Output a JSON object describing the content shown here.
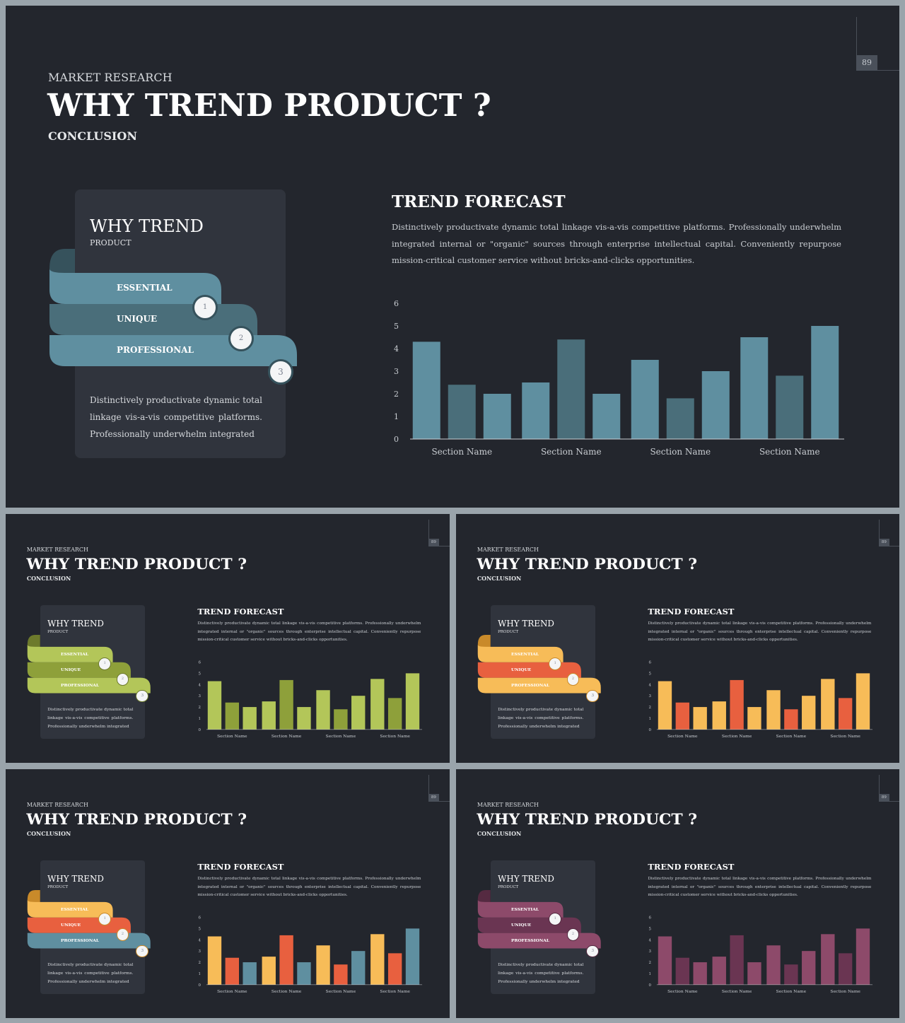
{
  "slides": [
    {
      "page_number": "89",
      "kicker": "MARKET RESEARCH",
      "title": "WHY TREND PRODUCT ?",
      "subtitle": "CONCLUSION",
      "card": {
        "title": "WHY TREND",
        "subtitle": "PRODUCT",
        "items": [
          {
            "label": "ESSENTIAL",
            "step": "1"
          },
          {
            "label": "UNIQUE",
            "step": "2"
          },
          {
            "label": "PROFESSIONAL",
            "step": "3"
          }
        ],
        "description": "Distinctively productivate dynamic total linkage vis-a-vis competitive platforms. Professionally underwhelm integrated"
      },
      "forecast": {
        "title": "TREND FORECAST",
        "text": "Distinctively productivate dynamic total linkage vis-a-vis competitive platforms. Professionally underwhelm integrated internal or \"organic\" sources through enterprise intellectual capital. Conveniently repurpose mission-critical customer service without bricks-and-clicks opportunities."
      },
      "colors": {
        "ribbons": [
          "#5f8fa0",
          "#4a6e7a",
          "#5f8fa0"
        ],
        "ribbon_shadow": "#36525c",
        "bars": [
          "#5f8fa0",
          "#4a6e7a",
          "#5f8fa0"
        ]
      }
    },
    {
      "page_number": "89",
      "kicker": "MARKET RESEARCH",
      "title": "WHY TREND PRODUCT ?",
      "subtitle": "CONCLUSION",
      "card": {
        "title": "WHY TREND",
        "subtitle": "PRODUCT",
        "items": [
          {
            "label": "ESSENTIAL",
            "step": "1"
          },
          {
            "label": "UNIQUE",
            "step": "2"
          },
          {
            "label": "PROFESSIONAL",
            "step": "3"
          }
        ],
        "description": "Distinctively productivate dynamic total linkage vis-a-vis competitive platforms. Professionally underwhelm integrated"
      },
      "forecast": {
        "title": "TREND FORECAST",
        "text": "Distinctively productivate dynamic total linkage vis-a-vis competitive platforms. Professionally underwhelm integrated internal or \"organic\" sources through enterprise intellectual capital. Conveniently repurpose mission-critical customer service without bricks-and-clicks opportunities."
      },
      "colors": {
        "ribbons": [
          "#b3c659",
          "#8ea03a",
          "#b3c659"
        ],
        "ribbon_shadow": "#6d7a2c",
        "bars": [
          "#b3c659",
          "#8ea03a",
          "#b3c659"
        ]
      }
    },
    {
      "page_number": "89",
      "kicker": "MARKET RESEARCH",
      "title": "WHY TREND PRODUCT ?",
      "subtitle": "CONCLUSION",
      "card": {
        "title": "WHY TREND",
        "subtitle": "PRODUCT",
        "items": [
          {
            "label": "ESSENTIAL",
            "step": "1"
          },
          {
            "label": "UNIQUE",
            "step": "2"
          },
          {
            "label": "PROFESSIONAL",
            "step": "3"
          }
        ],
        "description": "Distinctively productivate dynamic total linkage vis-a-vis competitive platforms. Professionally underwhelm integrated"
      },
      "forecast": {
        "title": "TREND FORECAST",
        "text": "Distinctively productivate dynamic total linkage vis-a-vis competitive platforms. Professionally underwhelm integrated internal or \"organic\" sources through enterprise intellectual capital. Conveniently repurpose mission-critical customer service without bricks-and-clicks opportunities."
      },
      "colors": {
        "ribbons": [
          "#f7bc58",
          "#e8603f",
          "#f7bc58"
        ],
        "ribbon_shadow": "#c98a2a",
        "bars": [
          "#f7bc58",
          "#e8603f",
          "#f7bc58"
        ]
      }
    },
    {
      "page_number": "89",
      "kicker": "MARKET RESEARCH",
      "title": "WHY TREND PRODUCT ?",
      "subtitle": "CONCLUSION",
      "card": {
        "title": "WHY TREND",
        "subtitle": "PRODUCT",
        "items": [
          {
            "label": "ESSENTIAL",
            "step": "1"
          },
          {
            "label": "UNIQUE",
            "step": "2"
          },
          {
            "label": "PROFESSIONAL",
            "step": "3"
          }
        ],
        "description": "Distinctively productivate dynamic total linkage vis-a-vis competitive platforms. Professionally underwhelm integrated"
      },
      "forecast": {
        "title": "TREND FORECAST",
        "text": "Distinctively productivate dynamic total linkage vis-a-vis competitive platforms. Professionally underwhelm integrated internal or \"organic\" sources through enterprise intellectual capital. Conveniently repurpose mission-critical customer service without bricks-and-clicks opportunities."
      },
      "colors": {
        "ribbons": [
          "#f7bc58",
          "#e8603f",
          "#5f8fa0"
        ],
        "ribbon_shadow": "#c98a2a",
        "bars": [
          "#f7bc58",
          "#e8603f",
          "#5f8fa0"
        ]
      }
    },
    {
      "page_number": "89",
      "kicker": "MARKET RESEARCH",
      "title": "WHY TREND PRODUCT ?",
      "subtitle": "CONCLUSION",
      "card": {
        "title": "WHY TREND",
        "subtitle": "PRODUCT",
        "items": [
          {
            "label": "ESSENTIAL",
            "step": "1"
          },
          {
            "label": "UNIQUE",
            "step": "2"
          },
          {
            "label": "PROFESSIONAL",
            "step": "3"
          }
        ],
        "description": "Distinctively productivate dynamic total linkage vis-a-vis competitive platforms. Professionally underwhelm integrated"
      },
      "forecast": {
        "title": "TREND FORECAST",
        "text": "Distinctively productivate dynamic total linkage vis-a-vis competitive platforms. Professionally underwhelm integrated internal or \"organic\" sources through enterprise intellectual capital. Conveniently repurpose mission-critical customer service without bricks-and-clicks opportunities."
      },
      "colors": {
        "ribbons": [
          "#8d4a6a",
          "#6a3552",
          "#8d4a6a"
        ],
        "ribbon_shadow": "#552a41",
        "bars": [
          "#8d4a6a",
          "#6a3552",
          "#8d4a6a"
        ]
      }
    }
  ],
  "chart_data": {
    "type": "bar",
    "title": "",
    "xlabel": "",
    "ylabel": "",
    "ylim": [
      0,
      6
    ],
    "yticks": [
      "0",
      "1",
      "2",
      "3",
      "4",
      "5",
      "6"
    ],
    "categories": [
      "Section Name",
      "Section Name",
      "Section Name",
      "Section Name"
    ],
    "series": [
      {
        "values": [
          4.3,
          2.5,
          3.5,
          4.5
        ]
      },
      {
        "values": [
          2.4,
          4.4,
          1.8,
          2.8
        ]
      },
      {
        "values": [
          2.0,
          2.0,
          3.0,
          5.0
        ]
      }
    ],
    "grid": false,
    "legend": "none"
  }
}
